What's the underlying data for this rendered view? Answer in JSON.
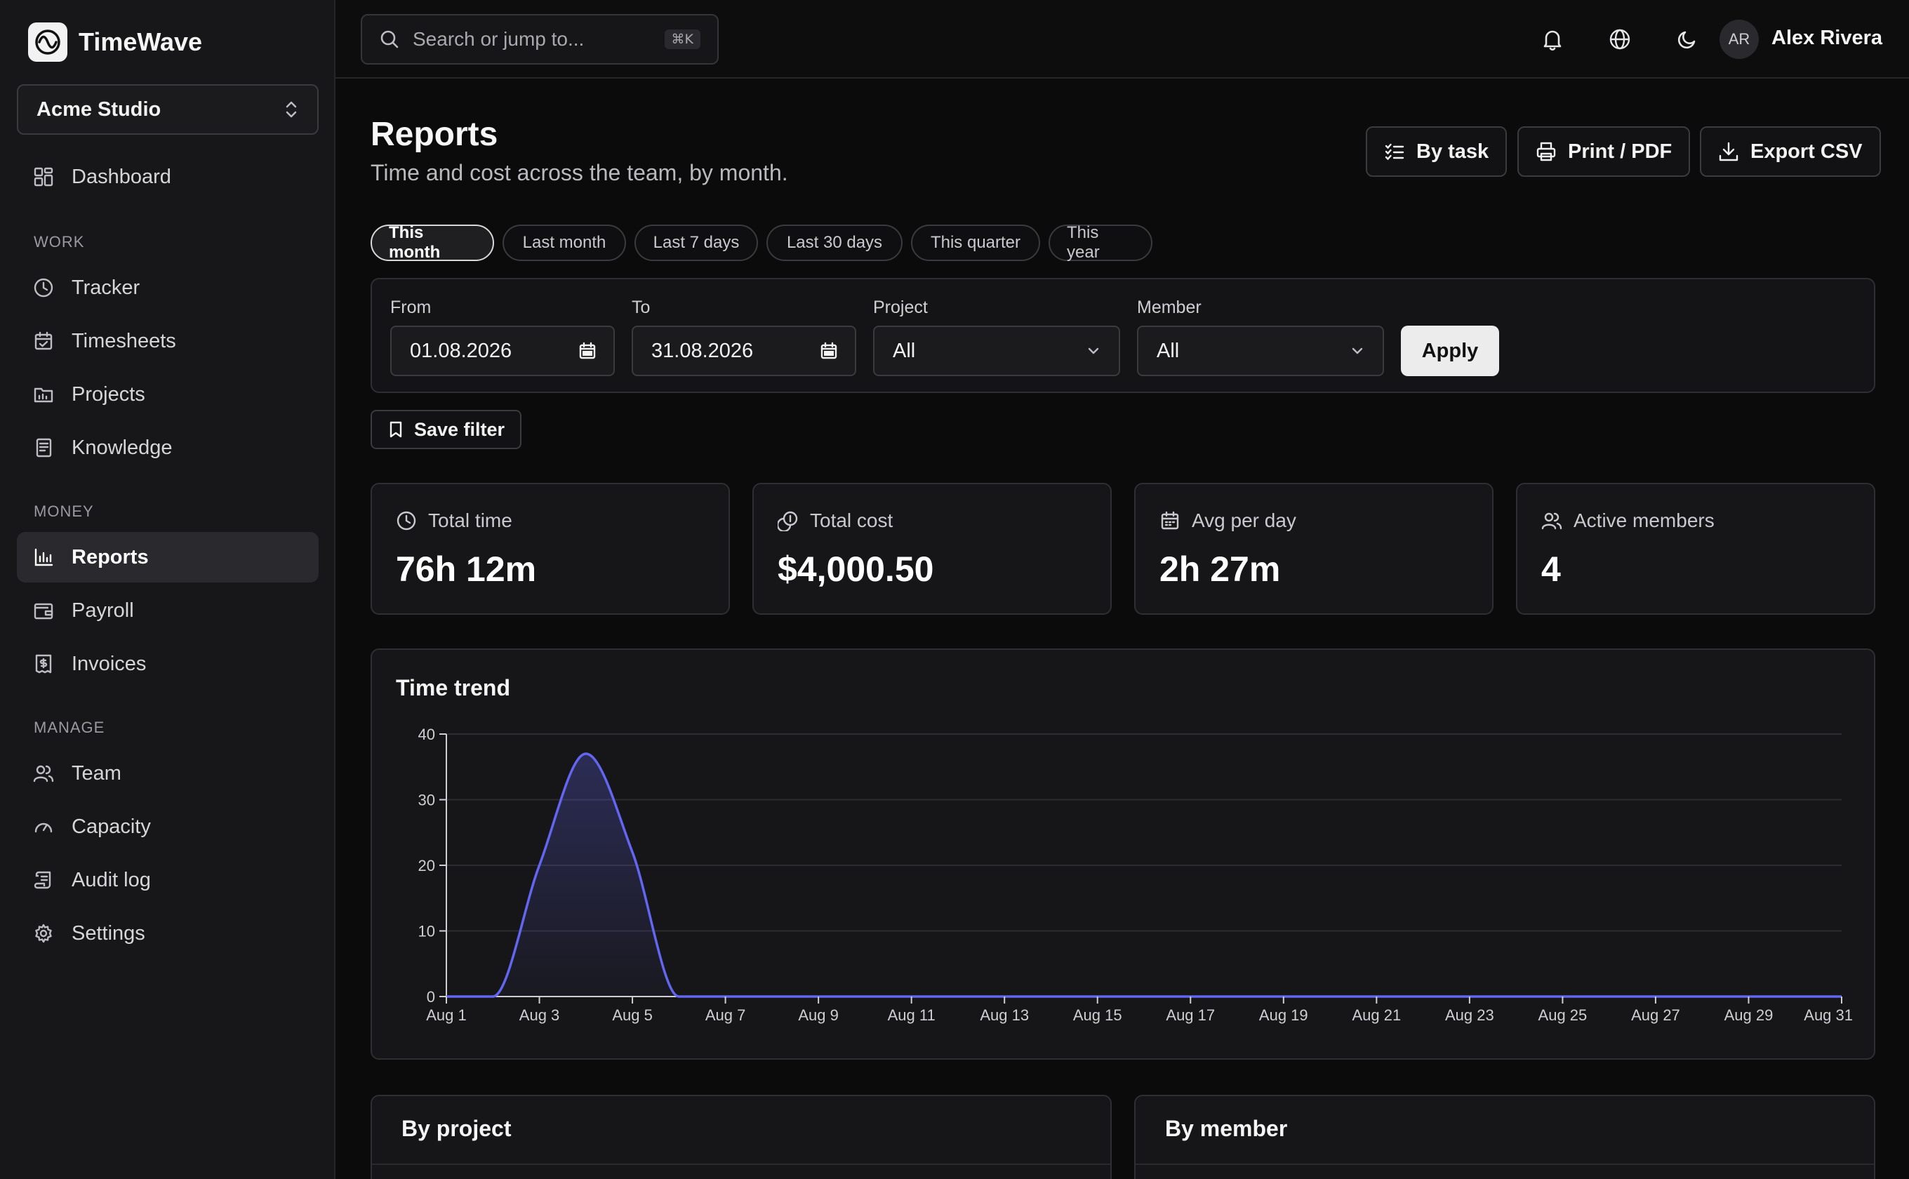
{
  "app": {
    "name": "TimeWave",
    "workspace": "Acme Studio"
  },
  "sidebar": {
    "top_item": {
      "label": "Dashboard",
      "icon": "dashboard-icon"
    },
    "sections": [
      {
        "label": "WORK",
        "items": [
          {
            "label": "Tracker",
            "icon": "clock-icon"
          },
          {
            "label": "Timesheets",
            "icon": "calendar-check-icon"
          },
          {
            "label": "Projects",
            "icon": "folder-icon"
          },
          {
            "label": "Knowledge",
            "icon": "book-icon"
          }
        ]
      },
      {
        "label": "MONEY",
        "items": [
          {
            "label": "Reports",
            "icon": "bar-chart-icon",
            "active": true
          },
          {
            "label": "Payroll",
            "icon": "wallet-icon"
          },
          {
            "label": "Invoices",
            "icon": "receipt-icon"
          }
        ]
      },
      {
        "label": "MANAGE",
        "items": [
          {
            "label": "Team",
            "icon": "users-icon"
          },
          {
            "label": "Capacity",
            "icon": "gauge-icon"
          },
          {
            "label": "Audit log",
            "icon": "scroll-icon"
          },
          {
            "label": "Settings",
            "icon": "gear-icon"
          }
        ]
      }
    ]
  },
  "topbar": {
    "search_placeholder": "Search or jump to...",
    "shortcut": "⌘K",
    "user": {
      "initials": "AR",
      "name": "Alex Rivera"
    }
  },
  "page": {
    "title": "Reports",
    "subtitle": "Time and cost across the team, by month.",
    "actions": [
      {
        "label": "By task",
        "icon": "list-check-icon"
      },
      {
        "label": "Print / PDF",
        "icon": "printer-icon"
      },
      {
        "label": "Export CSV",
        "icon": "download-icon"
      }
    ]
  },
  "ranges": [
    {
      "label": "This month",
      "active": true
    },
    {
      "label": "Last month"
    },
    {
      "label": "Last 7 days"
    },
    {
      "label": "Last 30 days"
    },
    {
      "label": "This quarter"
    },
    {
      "label": "This year"
    }
  ],
  "filters": {
    "from": {
      "label": "From",
      "value": "01.08.2026"
    },
    "to": {
      "label": "To",
      "value": "31.08.2026"
    },
    "project": {
      "label": "Project",
      "value": "All"
    },
    "member": {
      "label": "Member",
      "value": "All"
    },
    "apply_label": "Apply",
    "save_label": "Save filter"
  },
  "stats": [
    {
      "label": "Total time",
      "value": "76h 12m",
      "icon": "clock-icon"
    },
    {
      "label": "Total cost",
      "value": "$4,000.50",
      "icon": "coins-icon"
    },
    {
      "label": "Avg per day",
      "value": "2h 27m",
      "icon": "calendar-icon"
    },
    {
      "label": "Active members",
      "value": "4",
      "icon": "users-icon"
    }
  ],
  "chart_title": "Time trend",
  "chart_data": {
    "type": "area",
    "title": "Time trend",
    "x": [
      "Aug 1",
      "Aug 2",
      "Aug 3",
      "Aug 4",
      "Aug 5",
      "Aug 6",
      "Aug 7",
      "Aug 8",
      "Aug 9",
      "Aug 10",
      "Aug 11",
      "Aug 12",
      "Aug 13",
      "Aug 14",
      "Aug 15",
      "Aug 16",
      "Aug 17",
      "Aug 18",
      "Aug 19",
      "Aug 20",
      "Aug 21",
      "Aug 22",
      "Aug 23",
      "Aug 24",
      "Aug 25",
      "Aug 26",
      "Aug 27",
      "Aug 28",
      "Aug 29",
      "Aug 30",
      "Aug 31"
    ],
    "x_tick_labels": [
      "Aug 1",
      "Aug 3",
      "Aug 5",
      "Aug 7",
      "Aug 9",
      "Aug 11",
      "Aug 13",
      "Aug 15",
      "Aug 17",
      "Aug 19",
      "Aug 21",
      "Aug 23",
      "Aug 25",
      "Aug 27",
      "Aug 29",
      "Aug 31"
    ],
    "values": [
      0,
      0,
      20,
      37,
      22,
      0,
      0,
      0,
      0,
      0,
      0,
      0,
      0,
      0,
      0,
      0,
      0,
      0,
      0,
      0,
      0,
      0,
      0,
      0,
      0,
      0,
      0,
      0,
      0,
      0,
      0
    ],
    "ylim": [
      0,
      40
    ],
    "y_ticks": [
      0,
      10,
      20,
      30,
      40
    ],
    "grid": true,
    "line_color": "#6366f1"
  },
  "bottom_cards": [
    {
      "title": "By project"
    },
    {
      "title": "By member"
    }
  ]
}
